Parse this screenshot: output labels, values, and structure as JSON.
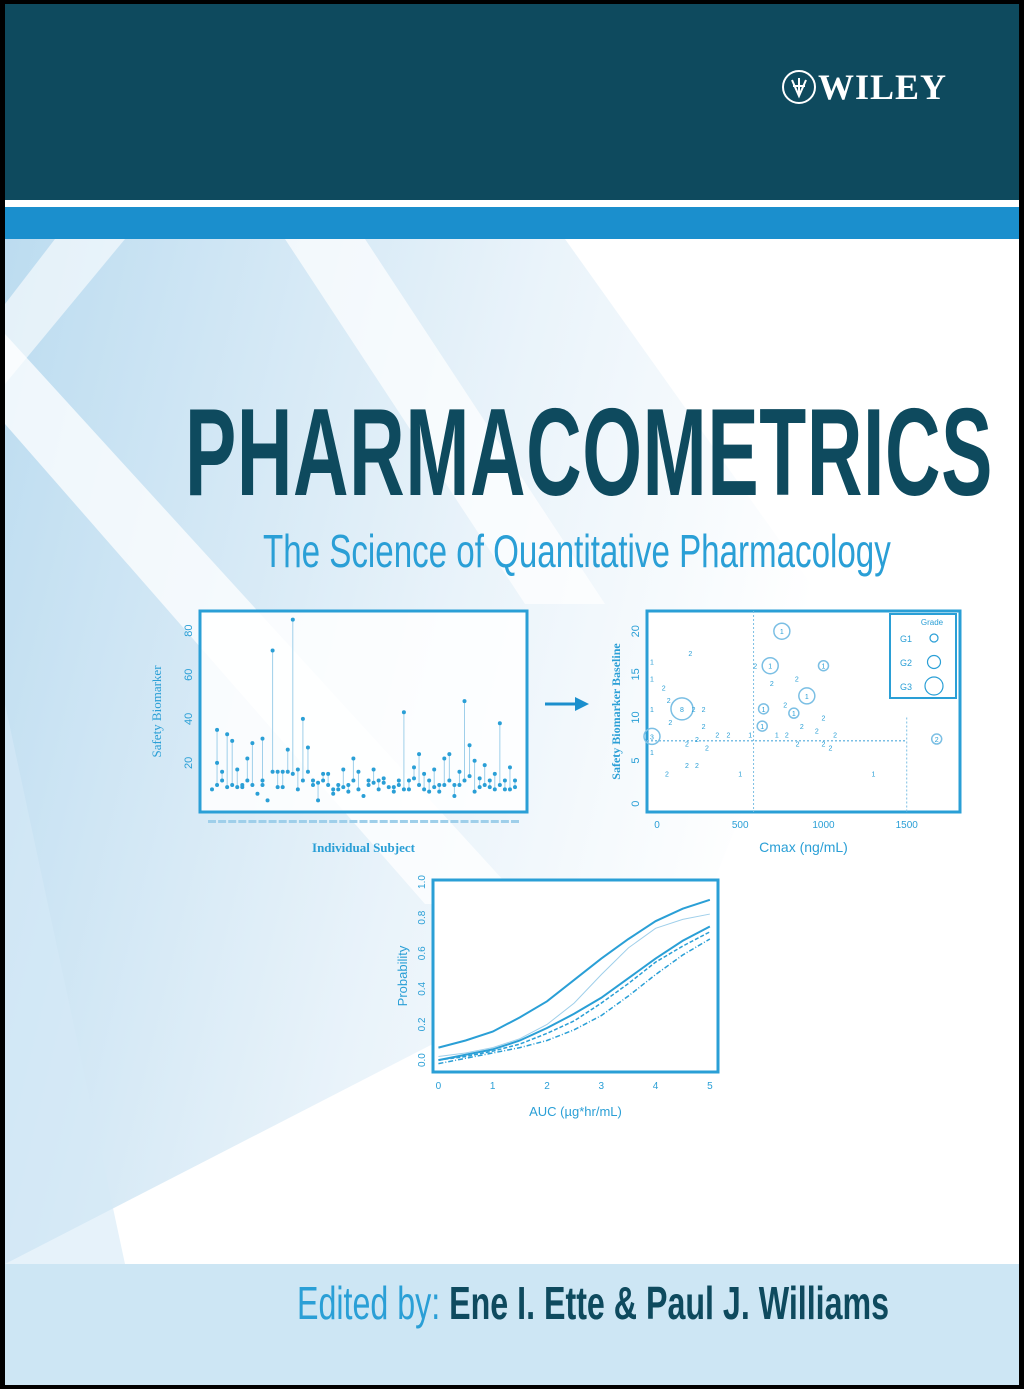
{
  "publisher": {
    "logo_text": "WILEY"
  },
  "title": "PHARMACOMETRICS",
  "subtitle": "The Science of Quantitative Pharmacology",
  "editors": {
    "label": "Edited by:",
    "names": "Ene I. Ette & Paul J. Williams"
  },
  "colors": {
    "dark_teal": "#0e4a5e",
    "stripe_blue": "#1b8fcd",
    "accent_blue": "#2a9fd6",
    "bottom_band": "#cde6f4"
  },
  "arrow_icon": "right-arrow",
  "chart_data": [
    {
      "type": "scatter",
      "title": "",
      "xlabel": "Individual Subject",
      "ylabel": "Safety Biomarker",
      "ylim": [
        0,
        88
      ],
      "yticks": [
        20,
        40,
        60,
        80
      ],
      "subjects": [
        [
          8
        ],
        [
          35,
          20,
          10
        ],
        [
          16,
          12
        ],
        [
          33,
          9
        ],
        [
          30,
          10
        ],
        [
          17,
          9
        ],
        [
          10,
          9
        ],
        [
          22,
          12
        ],
        [
          29,
          10
        ],
        [
          6
        ],
        [
          31,
          10,
          12
        ],
        [
          3
        ],
        [
          71,
          16
        ],
        [
          16,
          9
        ],
        [
          16,
          9
        ],
        [
          26,
          16
        ],
        [
          85,
          15
        ],
        [
          17,
          8
        ],
        [
          40,
          12
        ],
        [
          27,
          16
        ],
        [
          12,
          10
        ],
        [
          3,
          11
        ],
        [
          15,
          12
        ],
        [
          15,
          10
        ],
        [
          8,
          6
        ],
        [
          10,
          8
        ],
        [
          17,
          9
        ],
        [
          10,
          7
        ],
        [
          22,
          12
        ],
        [
          16,
          8
        ],
        [
          5
        ],
        [
          10,
          12
        ],
        [
          17,
          11
        ],
        [
          12,
          8
        ],
        [
          13,
          11
        ],
        [
          9
        ],
        [
          9,
          7
        ],
        [
          12,
          10
        ],
        [
          43,
          8
        ],
        [
          12,
          8
        ],
        [
          18,
          13
        ],
        [
          24,
          10
        ],
        [
          15,
          8
        ],
        [
          12,
          7
        ],
        [
          17,
          9
        ],
        [
          7,
          10
        ],
        [
          22,
          10
        ],
        [
          24,
          12
        ],
        [
          10,
          5
        ],
        [
          16,
          10
        ],
        [
          48,
          12
        ],
        [
          28,
          14
        ],
        [
          21,
          7
        ],
        [
          13,
          9
        ],
        [
          19,
          10
        ],
        [
          12,
          9
        ],
        [
          15,
          8
        ],
        [
          38,
          10
        ],
        [
          12,
          8
        ],
        [
          18,
          8
        ],
        [
          12,
          9
        ]
      ]
    },
    {
      "type": "scatter",
      "title": "",
      "xlabel": "Cmax (ng/mL)",
      "ylabel": "Safety Biomarker Baseline",
      "xlim": [
        -60,
        1820
      ],
      "ylim": [
        -0.5,
        22
      ],
      "xticks": [
        0,
        500,
        1000,
        1500
      ],
      "yticks": [
        0,
        5,
        10,
        15,
        20
      ],
      "reference_lines": {
        "x": [
          580,
          1500
        ],
        "y": [
          7.3
        ]
      },
      "legend": {
        "title": "Grade",
        "entries": [
          "G1",
          "G2",
          "G3"
        ],
        "placement": "top-right"
      },
      "points": [
        {
          "x": -30,
          "y": 16.5,
          "label": "1"
        },
        {
          "x": -30,
          "y": 14.5,
          "label": "1"
        },
        {
          "x": -30,
          "y": 11,
          "label": "1"
        },
        {
          "x": -30,
          "y": 7.8,
          "label": "3",
          "grade": "G2"
        },
        {
          "x": -30,
          "y": 6,
          "label": "1"
        },
        {
          "x": 40,
          "y": 13.5,
          "label": "2"
        },
        {
          "x": 70,
          "y": 12,
          "label": "2"
        },
        {
          "x": 80,
          "y": 9.5,
          "label": "2"
        },
        {
          "x": 150,
          "y": 11,
          "label": "8",
          "grade": "G3"
        },
        {
          "x": 200,
          "y": 17.5,
          "label": "2"
        },
        {
          "x": 220,
          "y": 11,
          "label": "2"
        },
        {
          "x": 280,
          "y": 11,
          "label": "2"
        },
        {
          "x": 280,
          "y": 9,
          "label": "2"
        },
        {
          "x": 300,
          "y": 6.5,
          "label": "2"
        },
        {
          "x": 320,
          "y": 8,
          "label": "2"
        },
        {
          "x": 345,
          "y": 8,
          "label": "2"
        },
        {
          "x": 240,
          "y": 7.5,
          "label": "2"
        },
        {
          "x": 240,
          "y": 4.5,
          "label": "2"
        },
        {
          "x": 180,
          "y": 4.5,
          "label": "2"
        },
        {
          "x": 60,
          "y": 3.5,
          "label": "2"
        },
        {
          "x": 180,
          "y": 7,
          "label": "2"
        },
        {
          "x": 500,
          "y": 3.5,
          "label": "1"
        },
        {
          "x": 560,
          "y": 8,
          "label": "1"
        },
        {
          "x": 590,
          "y": 9,
          "label": "1",
          "grade": "G1"
        },
        {
          "x": 590,
          "y": 16,
          "label": "2"
        },
        {
          "x": 680,
          "y": 16,
          "label": "1",
          "grade": "G2"
        },
        {
          "x": 690,
          "y": 14,
          "label": "2"
        },
        {
          "x": 640,
          "y": 11,
          "label": "1",
          "grade": "G1"
        },
        {
          "x": 770,
          "y": 11.5,
          "label": "2"
        },
        {
          "x": 780,
          "y": 10.5,
          "label": "1",
          "grade": "G1"
        },
        {
          "x": 750,
          "y": 20,
          "label": "1",
          "grade": "G2"
        },
        {
          "x": 840,
          "y": 14.5,
          "label": "2"
        },
        {
          "x": 900,
          "y": 12.5,
          "label": "1",
          "grade": "G2"
        },
        {
          "x": 870,
          "y": 9,
          "label": "2"
        },
        {
          "x": 780,
          "y": 8,
          "label": "2"
        },
        {
          "x": 720,
          "y": 8,
          "label": "1"
        },
        {
          "x": 760,
          "y": 7,
          "label": "2"
        },
        {
          "x": 1000,
          "y": 16,
          "label": "1",
          "grade": "G1"
        },
        {
          "x": 1000,
          "y": 10,
          "label": "2"
        },
        {
          "x": 960,
          "y": 8.5,
          "label": "2"
        },
        {
          "x": 1000,
          "y": 7,
          "label": "2"
        },
        {
          "x": 1000,
          "y": 6.5,
          "label": "2"
        },
        {
          "x": 1070,
          "y": 8,
          "label": "2"
        },
        {
          "x": 1300,
          "y": 3.5,
          "label": "1"
        },
        {
          "x": 1680,
          "y": 7.5,
          "label": "2",
          "grade": "G1"
        }
      ]
    },
    {
      "type": "line",
      "title": "",
      "xlabel": "AUC (µg*hr/mL)",
      "ylabel": "Probability",
      "xlim": [
        -0.1,
        5.15
      ],
      "ylim": [
        -0.05,
        1.0
      ],
      "xticks": [
        0,
        1,
        2,
        3,
        4,
        5
      ],
      "yticks": [
        0.0,
        0.2,
        0.4,
        0.6,
        0.8,
        1.0
      ],
      "x": [
        0,
        0.5,
        1,
        1.5,
        2,
        2.5,
        3,
        3.5,
        4,
        4.5,
        5
      ],
      "series": [
        {
          "style": "solid",
          "values": [
            0.07,
            0.11,
            0.16,
            0.24,
            0.33,
            0.45,
            0.57,
            0.68,
            0.78,
            0.85,
            0.9
          ]
        },
        {
          "style": "thin",
          "values": [
            0.02,
            0.04,
            0.07,
            0.12,
            0.2,
            0.32,
            0.48,
            0.63,
            0.74,
            0.79,
            0.82
          ]
        },
        {
          "style": "solid",
          "values": [
            0.0,
            0.03,
            0.06,
            0.11,
            0.18,
            0.26,
            0.35,
            0.46,
            0.57,
            0.67,
            0.75
          ]
        },
        {
          "style": "dashed",
          "values": [
            0.0,
            0.02,
            0.05,
            0.09,
            0.15,
            0.22,
            0.32,
            0.43,
            0.55,
            0.64,
            0.72
          ]
        },
        {
          "style": "dashdot",
          "values": [
            -0.02,
            0.01,
            0.04,
            0.07,
            0.11,
            0.17,
            0.25,
            0.36,
            0.48,
            0.59,
            0.68
          ]
        }
      ]
    }
  ]
}
